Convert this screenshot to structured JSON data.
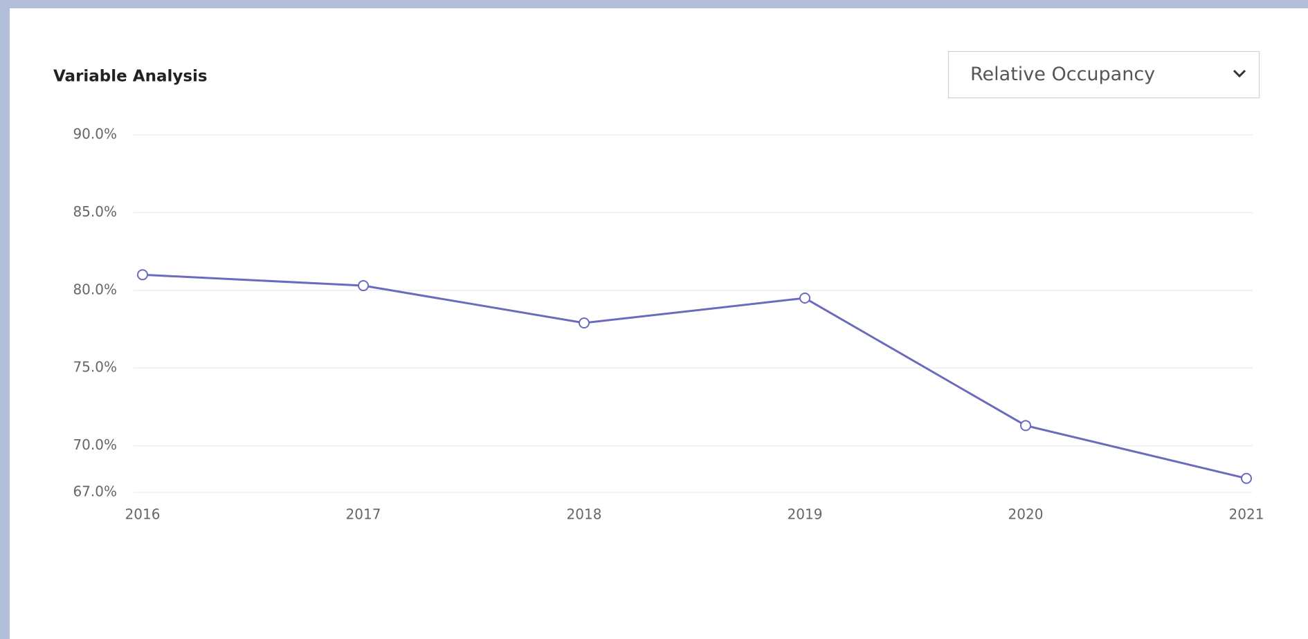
{
  "chart_data": {
    "type": "line",
    "title": "Variable Analysis",
    "categories": [
      "2016",
      "2017",
      "2018",
      "2019",
      "2020",
      "2021"
    ],
    "series": [
      {
        "name": "Relative Occupancy",
        "color": "#6b6bbd",
        "values": [
          81.0,
          80.3,
          77.9,
          79.5,
          71.3,
          67.9
        ]
      }
    ],
    "ylim": [
      67,
      90
    ],
    "yticks": [
      {
        "value": 67,
        "label": "67.0%"
      },
      {
        "value": 70,
        "label": "70.0%"
      },
      {
        "value": 75,
        "label": "75.0%"
      },
      {
        "value": 80,
        "label": "80.0%"
      },
      {
        "value": 85,
        "label": "85.0%"
      },
      {
        "value": 90,
        "label": "90.0%"
      }
    ],
    "grid": true
  },
  "controls": {
    "variable_select": "Relative Occupancy"
  }
}
